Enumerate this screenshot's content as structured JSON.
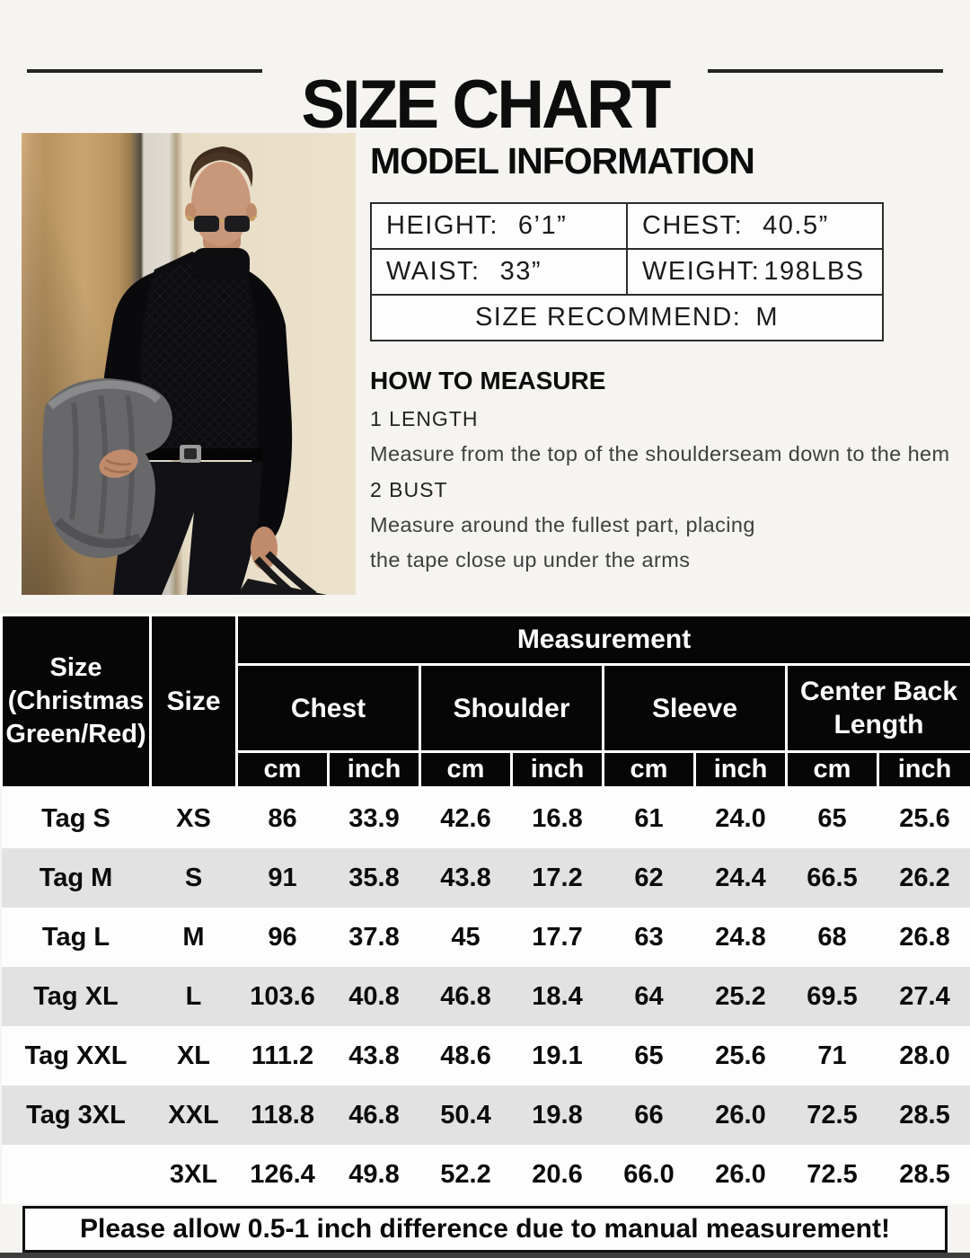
{
  "header": {
    "title": "SIZE CHART"
  },
  "model_info": {
    "heading": "MODEL INFORMATION",
    "height_label": "HEIGHT:",
    "height_value": "6’1”",
    "chest_label": "CHEST:",
    "chest_value": "40.5”",
    "waist_label": "WAIST:",
    "waist_value": "33”",
    "weight_label": "WEIGHT:",
    "weight_value": "198LBS",
    "recommend_label": "SIZE RECOMMEND:",
    "recommend_value": "M"
  },
  "how_to_measure": {
    "heading": "HOW TO MEASURE",
    "step1_title": "1 LENGTH",
    "step1_desc": "Measure from the top of the shoulderseam down to the hem",
    "step2_title": "2 BUST",
    "step2_desc_line1": "Measure around the fullest part, placing",
    "step2_desc_line2": "the tape close up under the arms"
  },
  "size_table": {
    "col1_header_lines": [
      "Size",
      "(Christmas",
      "Green/Red)"
    ],
    "col2_header": "Size",
    "measurement_header": "Measurement",
    "groups": [
      "Chest",
      "Shoulder",
      "Sleeve",
      "Center Back Length"
    ],
    "units": [
      "cm",
      "inch"
    ],
    "rows": [
      {
        "tag": "Tag S",
        "size": "XS",
        "values": [
          "86",
          "33.9",
          "42.6",
          "16.8",
          "61",
          "24.0",
          "65",
          "25.6"
        ]
      },
      {
        "tag": "Tag M",
        "size": "S",
        "values": [
          "91",
          "35.8",
          "43.8",
          "17.2",
          "62",
          "24.4",
          "66.5",
          "26.2"
        ]
      },
      {
        "tag": "Tag L",
        "size": "M",
        "values": [
          "96",
          "37.8",
          "45",
          "17.7",
          "63",
          "24.8",
          "68",
          "26.8"
        ]
      },
      {
        "tag": "Tag XL",
        "size": "L",
        "values": [
          "103.6",
          "40.8",
          "46.8",
          "18.4",
          "64",
          "25.2",
          "69.5",
          "27.4"
        ]
      },
      {
        "tag": "Tag XXL",
        "size": "XL",
        "values": [
          "111.2",
          "43.8",
          "48.6",
          "19.1",
          "65",
          "25.6",
          "71",
          "28.0"
        ]
      },
      {
        "tag": "Tag 3XL",
        "size": "XXL",
        "values": [
          "118.8",
          "46.8",
          "50.4",
          "19.8",
          "66",
          "26.0",
          "72.5",
          "28.5"
        ]
      },
      {
        "tag": "",
        "size": "3XL",
        "values": [
          "126.4",
          "49.8",
          "52.2",
          "20.6",
          "66.0",
          "26.0",
          "72.5",
          "28.5"
        ]
      }
    ]
  },
  "footer": {
    "note": "Please allow 0.5-1 inch difference due to manual measurement!"
  },
  "colors": {
    "table_header_bg": "#060606",
    "table_header_text": "#ffffff",
    "row_alt": "#e2e2e2",
    "title_line": "#232323",
    "note_border": "#101010"
  }
}
